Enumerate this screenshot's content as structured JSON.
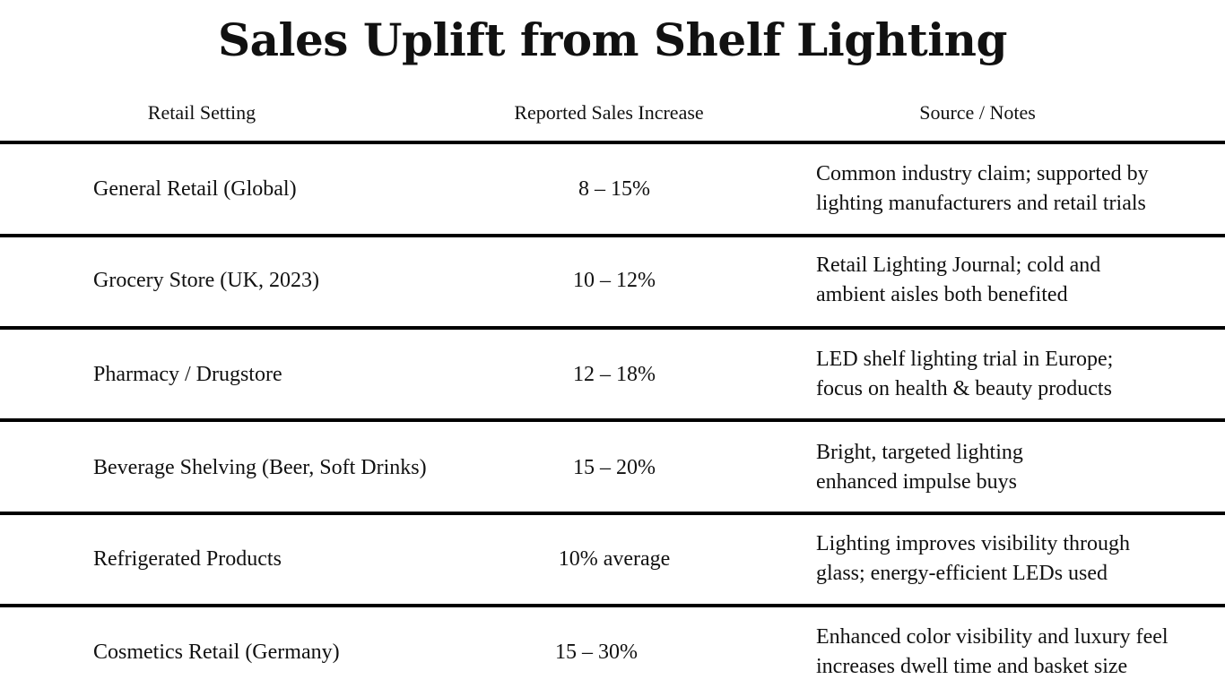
{
  "title": "Sales Uplift from Shelf Lighting",
  "columns": {
    "setting": "Retail Setting",
    "increase": "Reported Sales Increase",
    "source": "Source / Notes"
  },
  "rows": [
    {
      "setting": "General Retail (Global)",
      "increase": "8 – 15%",
      "source": [
        "Common industry claim; supported by",
        "lighting manufacturers and retail trials"
      ]
    },
    {
      "setting": "Grocery Store (UK, 2023)",
      "increase": "10 – 12%",
      "source": [
        "Retail Lighting Journal; cold and",
        "ambient aisles both benefited"
      ]
    },
    {
      "setting": "Pharmacy / Drugstore",
      "increase": "12 – 18%",
      "source": [
        "LED shelf lighting trial in Europe;",
        "focus on health & beauty products"
      ]
    },
    {
      "setting": "Beverage Shelving (Beer, Soft Drinks)",
      "increase": "15 – 20%",
      "source": [
        "Bright, targeted lighting",
        "enhanced impulse buys"
      ]
    },
    {
      "setting": "Refrigerated Products",
      "increase": "10% average",
      "source": [
        "Lighting improves visibility through",
        "glass; energy-efficient LEDs used"
      ]
    },
    {
      "setting": "Cosmetics Retail (Germany)",
      "increase": "15 – 30%",
      "source": [
        "Enhanced color visibility and luxury feel",
        "increases dwell time and basket size"
      ]
    }
  ]
}
